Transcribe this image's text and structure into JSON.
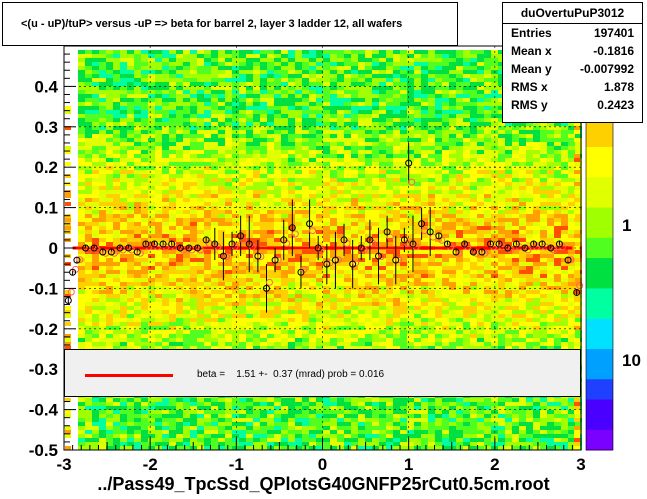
{
  "title": "<(u - uP)/tuP> versus  -uP => beta for barrel 2, layer 3 ladder 12, all wafers",
  "footer": "../Pass49_TpcSsd_QPlotsG40GNFP25rCut0.5cm.root",
  "stats": {
    "name": "duOvertuPuP3012",
    "rows": [
      {
        "label": "Entries",
        "value": "197401"
      },
      {
        "label": "Mean x",
        "value": "-0.1816"
      },
      {
        "label": "Mean y",
        "value": "-0.007992"
      },
      {
        "label": "RMS x",
        "value": "1.878"
      },
      {
        "label": "RMS y",
        "value": "0.2423"
      }
    ]
  },
  "legend": {
    "text": "beta =    1.51 +-  0.37 (mrad) prob = 0.016",
    "color": "#ff0000"
  },
  "chart_data": {
    "type": "heatmap",
    "xlim": [
      -3,
      3
    ],
    "ylim": [
      -0.5,
      0.5
    ],
    "x_ticks": [
      "-3",
      "-2",
      "-1",
      "0",
      "1",
      "2",
      "3"
    ],
    "y_ticks": [
      "-0.5",
      "-0.4",
      "-0.3",
      "-0.2",
      "-0.1",
      "0",
      "0.1",
      "0.2",
      "0.3",
      "0.4"
    ],
    "z_ticks": [
      "1",
      "10"
    ],
    "grid": true,
    "fit_line": {
      "slope": 0.0,
      "intercept": 0.0,
      "color": "#ff0000"
    },
    "profile_points": [
      {
        "x": -2.95,
        "y": -0.13
      },
      {
        "x": -2.9,
        "y": -0.06
      },
      {
        "x": -2.85,
        "y": -0.03
      },
      {
        "x": -2.75,
        "y": 0.0
      },
      {
        "x": -2.65,
        "y": 0.0
      },
      {
        "x": -2.55,
        "y": -0.01
      },
      {
        "x": -2.45,
        "y": -0.01
      },
      {
        "x": -2.35,
        "y": 0.0
      },
      {
        "x": -2.25,
        "y": 0.0
      },
      {
        "x": -2.15,
        "y": -0.01
      },
      {
        "x": -2.05,
        "y": 0.01
      },
      {
        "x": -1.95,
        "y": 0.01
      },
      {
        "x": -1.85,
        "y": 0.01
      },
      {
        "x": -1.75,
        "y": 0.01
      },
      {
        "x": -1.65,
        "y": 0.0
      },
      {
        "x": -1.55,
        "y": 0.0
      },
      {
        "x": -1.45,
        "y": 0.0
      },
      {
        "x": -1.35,
        "y": 0.02
      },
      {
        "x": -1.25,
        "y": 0.01
      },
      {
        "x": -1.15,
        "y": -0.02
      },
      {
        "x": -1.05,
        "y": 0.01
      },
      {
        "x": -0.95,
        "y": 0.03
      },
      {
        "x": -0.85,
        "y": 0.01
      },
      {
        "x": -0.75,
        "y": -0.02
      },
      {
        "x": -0.65,
        "y": -0.1
      },
      {
        "x": -0.55,
        "y": -0.03
      },
      {
        "x": -0.45,
        "y": 0.02
      },
      {
        "x": -0.35,
        "y": 0.05
      },
      {
        "x": -0.25,
        "y": -0.06
      },
      {
        "x": -0.15,
        "y": 0.06
      },
      {
        "x": -0.05,
        "y": 0.0
      },
      {
        "x": 0.05,
        "y": -0.04
      },
      {
        "x": 0.15,
        "y": -0.03
      },
      {
        "x": 0.25,
        "y": 0.02
      },
      {
        "x": 0.35,
        "y": -0.04
      },
      {
        "x": 0.45,
        "y": 0.0
      },
      {
        "x": 0.55,
        "y": 0.02
      },
      {
        "x": 0.65,
        "y": -0.02
      },
      {
        "x": 0.75,
        "y": 0.04
      },
      {
        "x": 0.85,
        "y": -0.03
      },
      {
        "x": 0.95,
        "y": 0.02
      },
      {
        "x": 1.0,
        "y": 0.21
      },
      {
        "x": 1.05,
        "y": 0.01
      },
      {
        "x": 1.15,
        "y": 0.06
      },
      {
        "x": 1.25,
        "y": 0.04
      },
      {
        "x": 1.35,
        "y": 0.03
      },
      {
        "x": 1.45,
        "y": 0.01
      },
      {
        "x": 1.55,
        "y": -0.01
      },
      {
        "x": 1.65,
        "y": 0.01
      },
      {
        "x": 1.75,
        "y": -0.01
      },
      {
        "x": 1.85,
        "y": -0.01
      },
      {
        "x": 1.95,
        "y": 0.01
      },
      {
        "x": 2.05,
        "y": 0.01
      },
      {
        "x": 2.15,
        "y": 0.0
      },
      {
        "x": 2.25,
        "y": 0.01
      },
      {
        "x": 2.35,
        "y": 0.0
      },
      {
        "x": 2.45,
        "y": 0.01
      },
      {
        "x": 2.55,
        "y": 0.01
      },
      {
        "x": 2.65,
        "y": 0.0
      },
      {
        "x": 2.75,
        "y": 0.01
      },
      {
        "x": 2.85,
        "y": -0.03
      },
      {
        "x": 2.95,
        "y": -0.11
      }
    ],
    "colors": {
      "palette": [
        "#7a00ff",
        "#4a00ff",
        "#2040ff",
        "#00a0ff",
        "#00e0ff",
        "#00ffa0",
        "#00e040",
        "#50ff20",
        "#a0ff00",
        "#e0ff00",
        "#ffff00",
        "#ffd000",
        "#ffa000",
        "#ff5000",
        "#ff0000"
      ]
    }
  }
}
